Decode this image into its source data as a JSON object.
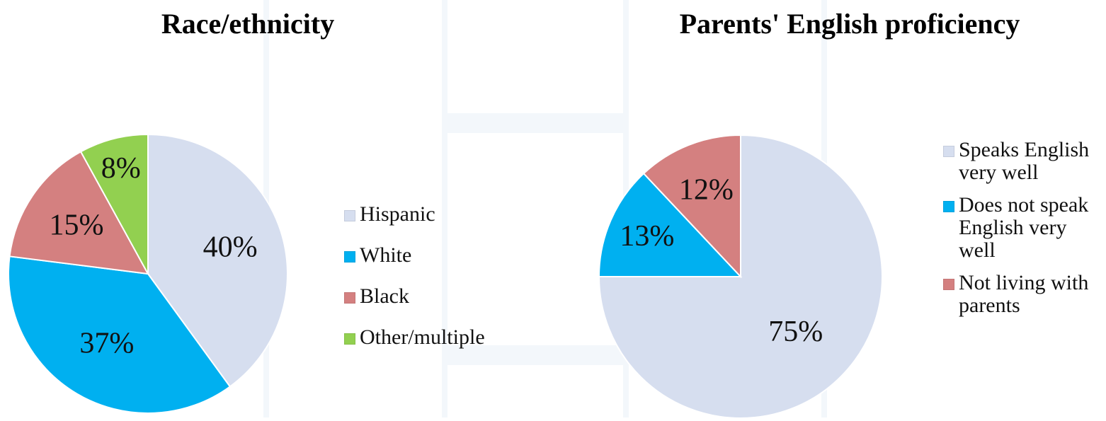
{
  "chart_data": [
    {
      "type": "pie",
      "title": "Race/ethnicity",
      "categories": [
        "Hispanic",
        "White",
        "Black",
        "Other/multiple"
      ],
      "values": [
        40,
        37,
        15,
        8
      ],
      "labels": [
        "40%",
        "37%",
        "15%",
        "8%"
      ],
      "colors": [
        "#d6deef",
        "#00b0f0",
        "#d48080",
        "#92d050"
      ],
      "legend_position": "right"
    },
    {
      "type": "pie",
      "title": "Parents' English proficiency",
      "categories": [
        "Speaks English very well",
        "Does not speak English very well",
        "Not living with parents"
      ],
      "values": [
        75,
        13,
        12
      ],
      "labels": [
        "75%",
        "13%",
        "12%"
      ],
      "colors": [
        "#d6deef",
        "#00b0f0",
        "#d48080"
      ],
      "legend_position": "right"
    }
  ]
}
